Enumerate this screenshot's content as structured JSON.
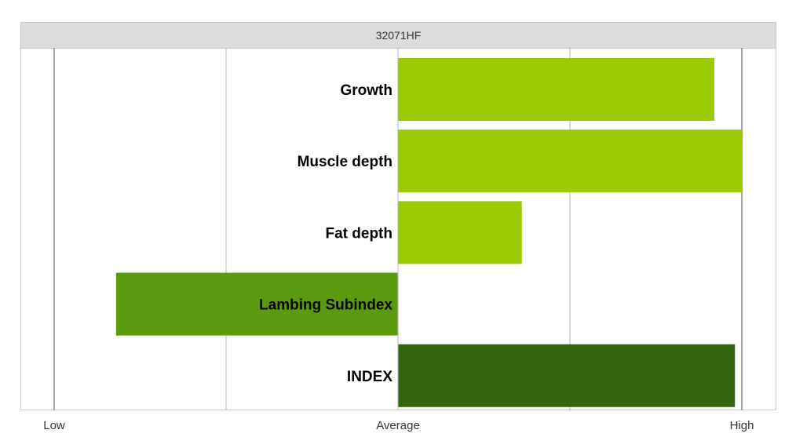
{
  "chart_data": {
    "type": "bar",
    "orientation": "horizontal",
    "title": "32071HF",
    "categories": [
      "Growth",
      "Muscle depth",
      "Fat depth",
      "Lambing Subindex",
      "INDEX"
    ],
    "values": [
      0.92,
      1.0,
      0.36,
      -0.82,
      0.98
    ],
    "bar_colors": [
      "#99cc00",
      "#99cc00",
      "#99cc00",
      "#5a9a0f",
      "#336611"
    ],
    "xlim": [
      -1,
      1
    ],
    "x_ticks": [
      -1,
      0,
      1
    ],
    "x_tick_labels": [
      "Low",
      "Average",
      "High"
    ],
    "x_gridlines": [
      -1,
      -0.5,
      0,
      0.5,
      1
    ],
    "grid": true,
    "legend": "none"
  },
  "colors": {
    "header_bg": "#dcdcdc",
    "grid": "#b4b4b4",
    "axis": "#888888"
  }
}
